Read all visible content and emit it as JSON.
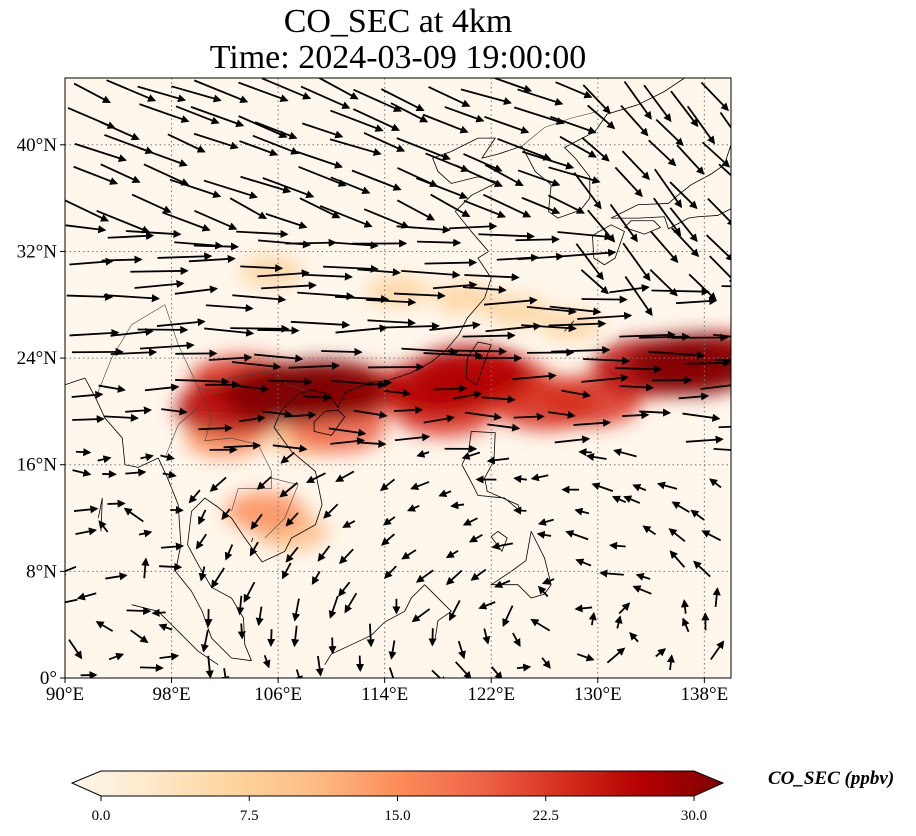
{
  "title": {
    "line1": "CO_SEC at 4km",
    "line2": "Time: 2024-03-09 19:00:00"
  },
  "chart_data": {
    "type": "heatmap",
    "title": "CO_SEC at 4km / Time: 2024-03-09 19:00:00",
    "variable": "CO_SEC",
    "units": "ppbv",
    "xlim": [
      90,
      140
    ],
    "ylim": [
      0,
      45
    ],
    "x_ticks": [
      {
        "value": 90,
        "label": "90°E"
      },
      {
        "value": 98,
        "label": "98°E"
      },
      {
        "value": 106,
        "label": "106°E"
      },
      {
        "value": 114,
        "label": "114°E"
      },
      {
        "value": 122,
        "label": "122°E"
      },
      {
        "value": 130,
        "label": "130°E"
      },
      {
        "value": 138,
        "label": "138°E"
      }
    ],
    "y_ticks": [
      {
        "value": 0,
        "label": "0°"
      },
      {
        "value": 8,
        "label": "8°N"
      },
      {
        "value": 16,
        "label": "16°N"
      },
      {
        "value": 24,
        "label": "24°N"
      },
      {
        "value": 32,
        "label": "32°N"
      },
      {
        "value": 40,
        "label": "40°N"
      }
    ],
    "grid": true,
    "colorbar": {
      "label": "CO_SEC (ppbv)",
      "range": [
        0,
        30
      ],
      "ticks": [
        "0.0",
        "7.5",
        "15.0",
        "22.5",
        "30.0"
      ],
      "colors": [
        "#fff7ec",
        "#fee8c8",
        "#fdd49e",
        "#fdbb84",
        "#fc8d59",
        "#ef6548",
        "#d7301f",
        "#b30000",
        "#7f0000"
      ]
    },
    "plume_features": [
      {
        "lon": 106.5,
        "lat": 21.3,
        "value": 30
      },
      {
        "lon": 109.5,
        "lat": 21.6,
        "value": 30
      },
      {
        "lon": 112,
        "lat": 21.4,
        "value": 24
      },
      {
        "lon": 102.5,
        "lat": 20.2,
        "value": 26
      },
      {
        "lon": 103.3,
        "lat": 22.2,
        "value": 24
      },
      {
        "lon": 110.5,
        "lat": 18.7,
        "value": 20
      },
      {
        "lon": 118,
        "lat": 21.8,
        "value": 26
      },
      {
        "lon": 120.5,
        "lat": 22.8,
        "value": 28
      },
      {
        "lon": 122.5,
        "lat": 22.2,
        "value": 24
      },
      {
        "lon": 118.5,
        "lat": 20,
        "value": 22
      },
      {
        "lon": 126,
        "lat": 20.6,
        "value": 24
      },
      {
        "lon": 129.5,
        "lat": 20.8,
        "value": 22
      },
      {
        "lon": 134,
        "lat": 23.3,
        "value": 28
      },
      {
        "lon": 137,
        "lat": 23.5,
        "value": 30
      },
      {
        "lon": 139,
        "lat": 23.8,
        "value": 26
      },
      {
        "lon": 108,
        "lat": 18,
        "value": 12
      },
      {
        "lon": 105,
        "lat": 12.5,
        "value": 14
      },
      {
        "lon": 107,
        "lat": 11,
        "value": 12
      },
      {
        "lon": 102,
        "lat": 18,
        "value": 14
      },
      {
        "lon": 115,
        "lat": 29,
        "value": 8
      },
      {
        "lon": 120,
        "lat": 28.5,
        "value": 8
      },
      {
        "lon": 124,
        "lat": 27.5,
        "value": 8
      },
      {
        "lon": 105.5,
        "lat": 30.5,
        "value": 8
      },
      {
        "lon": 128,
        "lat": 26.5,
        "value": 7
      }
    ],
    "wind_vectors": "quiver field, predominantly westerly north of ~17°N, northeasterly/cyclonic over South China Sea"
  }
}
